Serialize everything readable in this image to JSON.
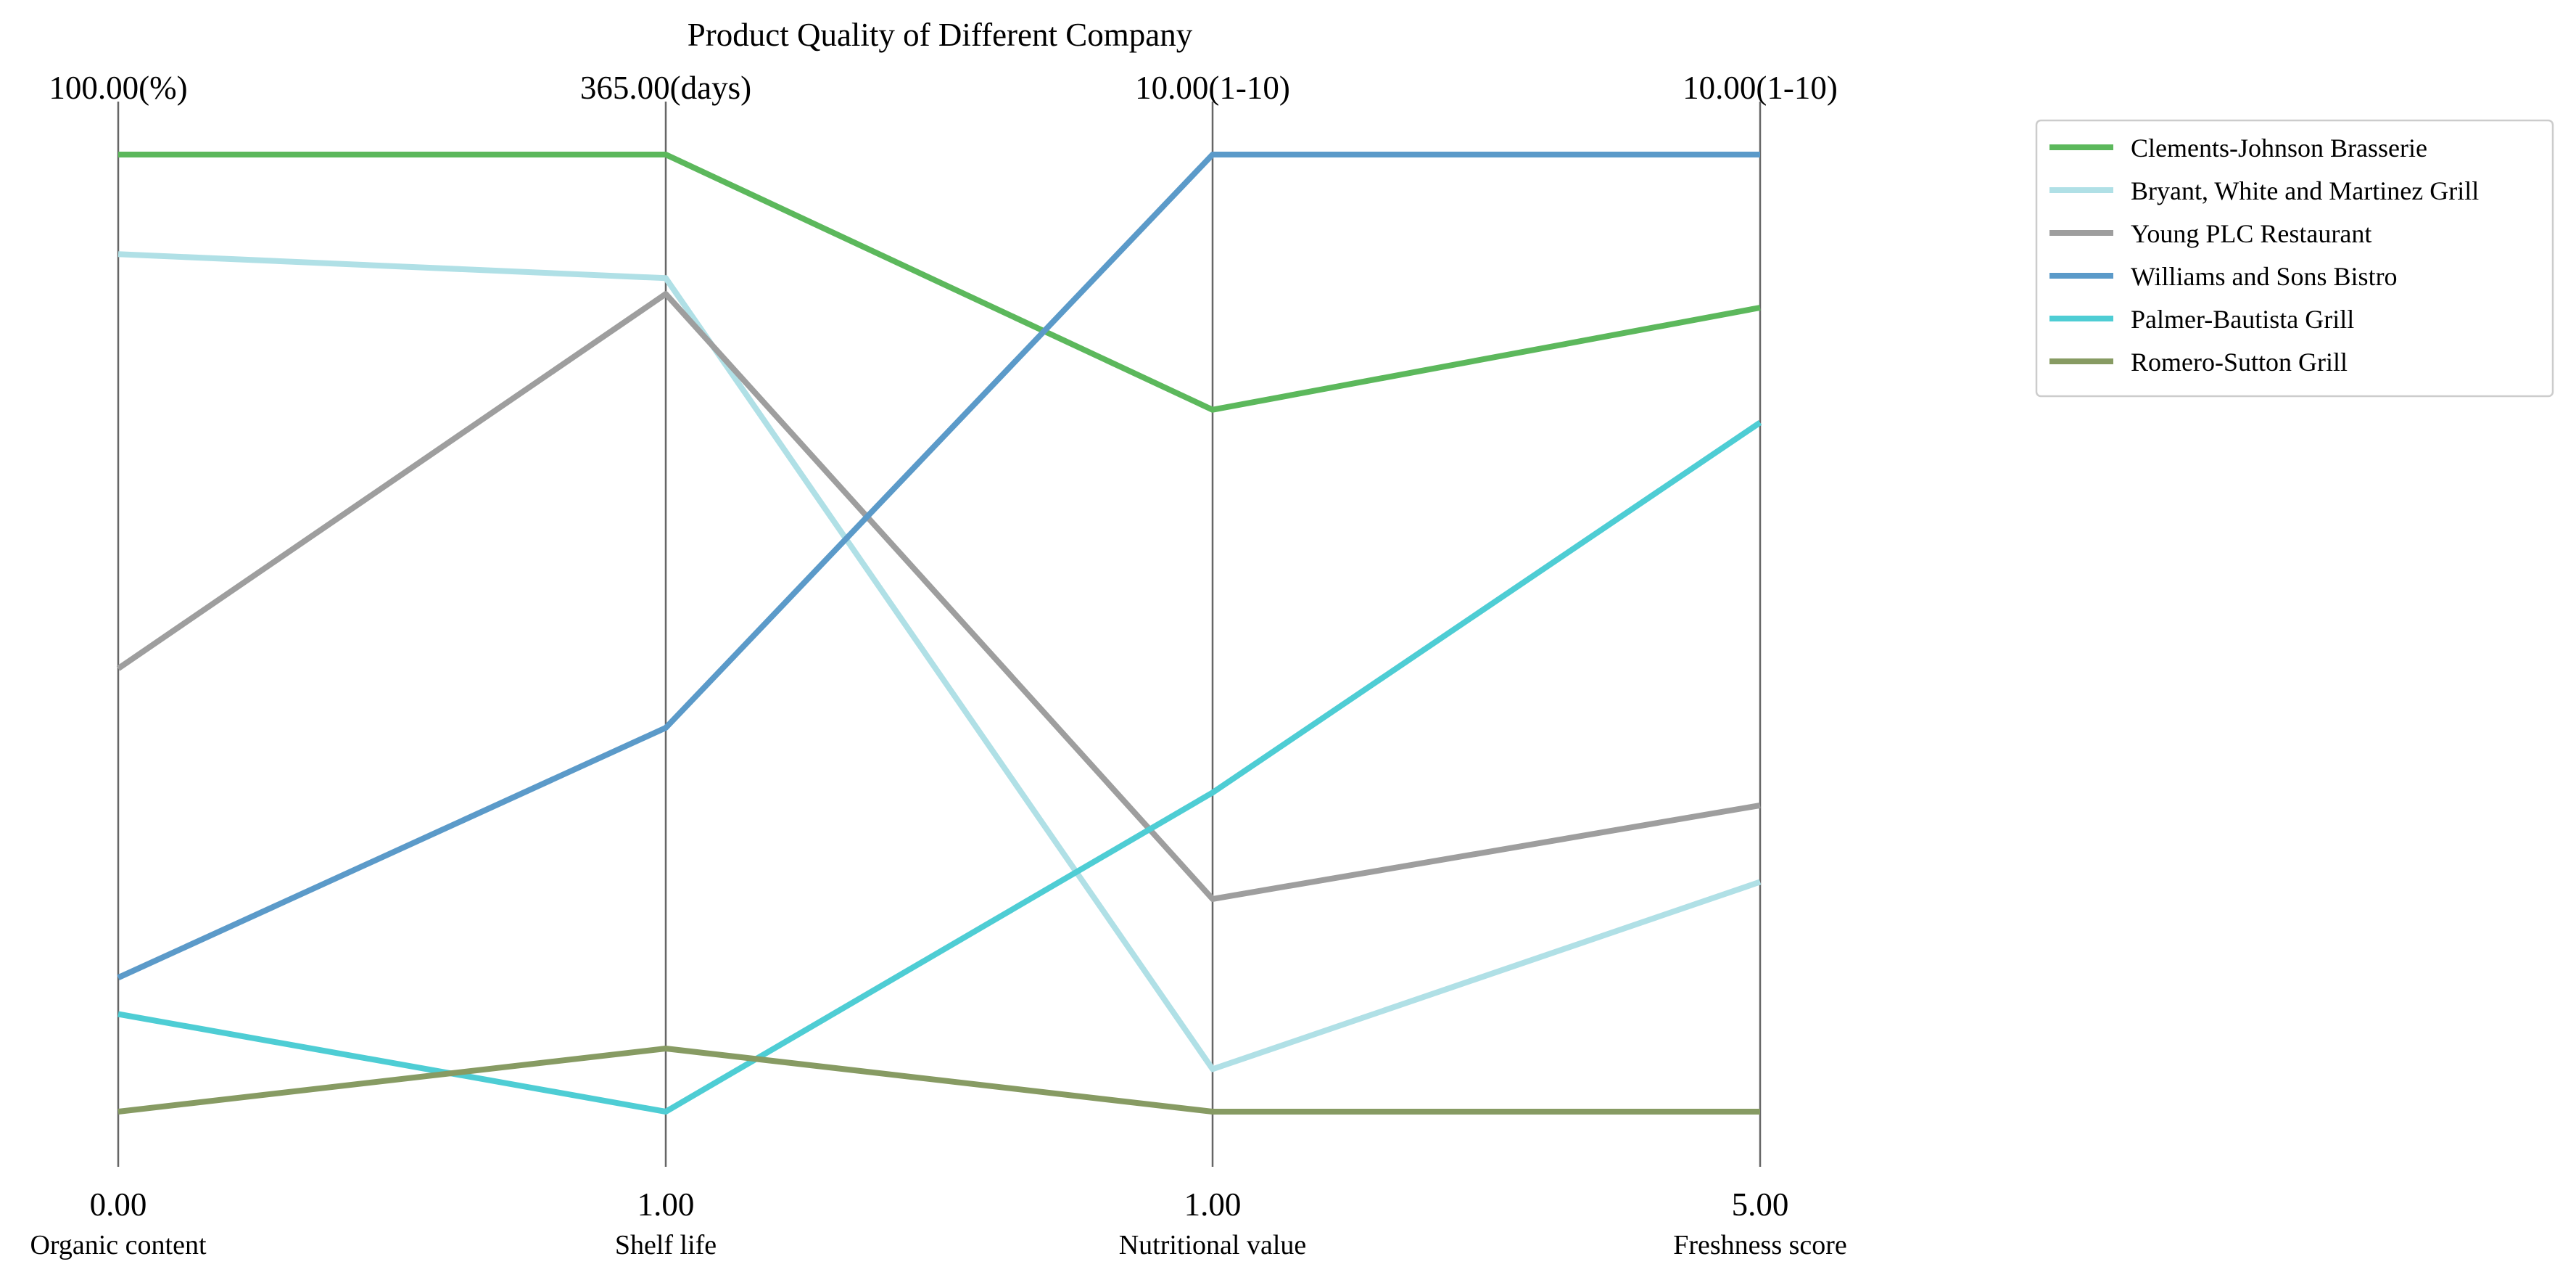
{
  "chart_data": {
    "type": "parallel-coordinates",
    "title": "Product Quality of Different Company",
    "axes": [
      {
        "name": "Organic content",
        "min_label": "0.00",
        "max_label": "100.00(%)",
        "min": 0,
        "max": 100
      },
      {
        "name": "Shelf life",
        "min_label": "1.00",
        "max_label": "365.00(days)",
        "min": 1,
        "max": 365
      },
      {
        "name": "Nutritional value",
        "min_label": "1.00",
        "max_label": "10.00(1-10)",
        "min": 1,
        "max": 10
      },
      {
        "name": "Freshness score",
        "min_label": "5.00",
        "max_label": "10.00(1-10)",
        "min": 5,
        "max": 10
      }
    ],
    "series": [
      {
        "name": "Clements-Johnson  Brasserie",
        "color": "#5cb85c",
        "values": [
          100,
          365,
          7.6,
          9.2
        ]
      },
      {
        "name": "Bryant, White and Martinez  Grill",
        "color": "#b0e0e6",
        "values": [
          89.6,
          318,
          1.4,
          6.2
        ]
      },
      {
        "name": "Young PLC  Restaurant",
        "color": "#9e9e9e",
        "values": [
          46.3,
          312,
          3.0,
          6.6
        ]
      },
      {
        "name": "Williams and Sons  Bistro",
        "color": "#5b9ac9",
        "values": [
          14.0,
          147,
          10,
          10
        ]
      },
      {
        "name": "Palmer-Bautista  Grill",
        "color": "#4ecdd4",
        "values": [
          10.2,
          1,
          4.0,
          8.6
        ]
      },
      {
        "name": "Romero-Sutton  Grill",
        "color": "#879b63",
        "values": [
          0,
          25,
          1,
          5
        ]
      }
    ],
    "legend": "top-right",
    "grid": false
  }
}
